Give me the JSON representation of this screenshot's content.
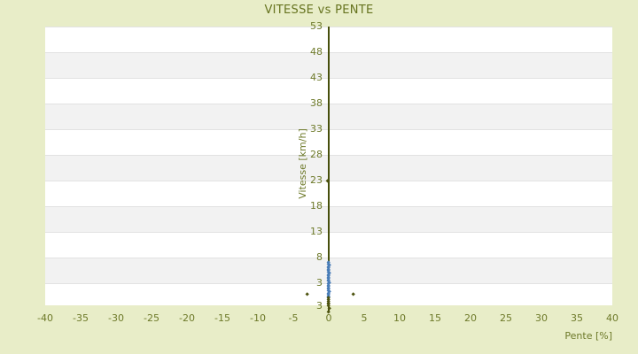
{
  "page": {
    "background_color": "#e8edc8",
    "text_color": "#6d7929",
    "title_color": "#66731f"
  },
  "chart_data": {
    "type": "scatter",
    "title": "VITESSE vs PENTE",
    "xlabel": "Pente [%]",
    "ylabel": "Vitesse [km/h]",
    "xlim": [
      -40,
      40
    ],
    "ylim": [
      -1.3,
      53
    ],
    "x_ticks": [
      -40,
      -35,
      -30,
      -25,
      -20,
      -15,
      -10,
      -5,
      0,
      5,
      10,
      15,
      20,
      25,
      30,
      35,
      40
    ],
    "y_ticks": [
      53,
      48,
      43,
      38,
      33,
      28,
      23,
      18,
      13,
      8,
      3
    ],
    "y_axis_end_label": "3",
    "grid": "alternating-horizontal-bands",
    "legend": "none",
    "colors": {
      "zero_line": "#474f0c",
      "band_gray": "#f2f2f2",
      "band_white": "#ffffff",
      "band_edge": "#e2e2e2",
      "plot_border": "#d3d3d3",
      "point_blue": "#4a7db8",
      "point_dark": "#4d530f"
    },
    "series": [
      {
        "name": "vitesse-points",
        "color": "#4a7db8",
        "points": [
          [
            0,
            7.0
          ],
          [
            0,
            6.75
          ],
          [
            0.1,
            6.5
          ],
          [
            0,
            6.2
          ],
          [
            0,
            5.95
          ],
          [
            -0.1,
            5.7
          ],
          [
            0,
            5.45
          ],
          [
            0,
            5.2
          ],
          [
            0.1,
            4.9
          ],
          [
            0,
            4.65
          ],
          [
            0,
            4.4
          ],
          [
            0,
            4.15
          ],
          [
            -0.1,
            3.9
          ],
          [
            0,
            3.6
          ],
          [
            0,
            3.35
          ],
          [
            0.1,
            3.1
          ],
          [
            0,
            2.85
          ],
          [
            0,
            2.6
          ],
          [
            0,
            2.3
          ],
          [
            -0.1,
            2.05
          ],
          [
            0,
            1.8
          ],
          [
            0,
            1.55
          ],
          [
            0.1,
            1.3
          ],
          [
            0,
            1.0
          ],
          [
            0,
            0.75
          ],
          [
            0,
            0.5
          ],
          [
            0,
            0.25
          ]
        ]
      },
      {
        "name": "vitesse-points-dark",
        "color": "#4d530f",
        "points": [
          [
            0,
            0.05
          ],
          [
            0,
            -0.25
          ],
          [
            0,
            -0.55
          ],
          [
            0,
            -0.85
          ],
          [
            0,
            -1.15
          ],
          [
            0,
            -1.45
          ],
          [
            0.1,
            -2.0
          ],
          [
            0,
            -2.7
          ],
          [
            -3,
            0.8
          ],
          [
            3.4,
            0.8
          ],
          [
            -0.2,
            22.8
          ]
        ]
      }
    ]
  }
}
